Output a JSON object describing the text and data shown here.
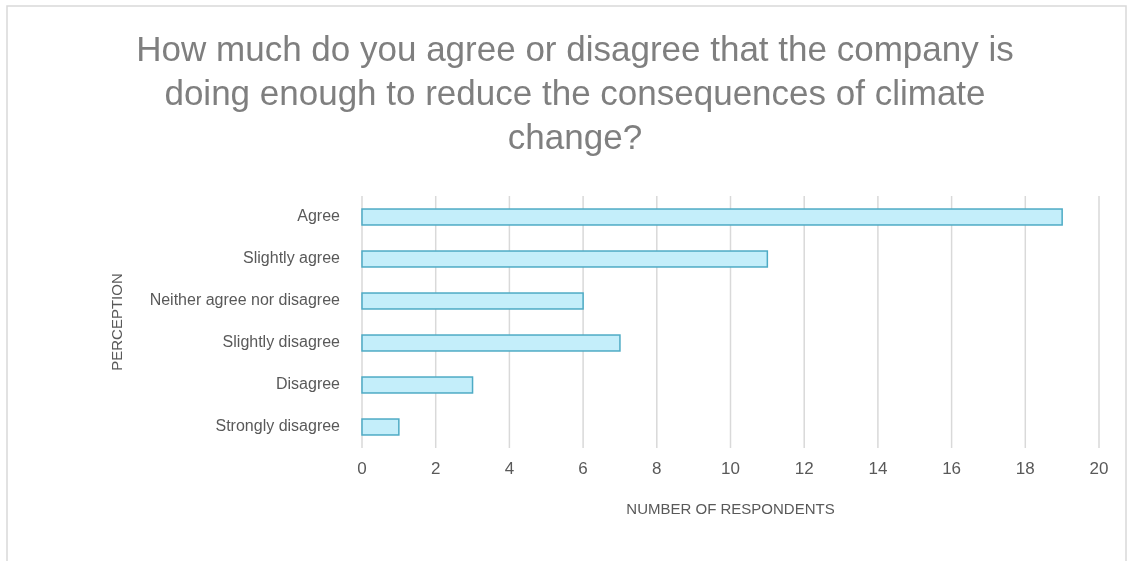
{
  "chart_data": {
    "type": "bar",
    "orientation": "horizontal",
    "title": "How much do you agree or disagree that the company is doing enough to reduce the consequences of climate change?",
    "xlabel": "NUMBER OF RESPONDENTS",
    "ylabel": "PERCEPTION",
    "categories": [
      "Agree",
      "Slightly agree",
      "Neither agree nor disagree",
      "Slightly disagree",
      "Disagree",
      "Strongly disagree"
    ],
    "values": [
      19,
      11,
      6,
      7,
      3,
      1
    ],
    "color": "#c4eefa",
    "xlim": [
      0,
      20
    ],
    "xticks": [
      0,
      2,
      4,
      6,
      8,
      10,
      12,
      14,
      16,
      18,
      20
    ],
    "grid": "x"
  }
}
